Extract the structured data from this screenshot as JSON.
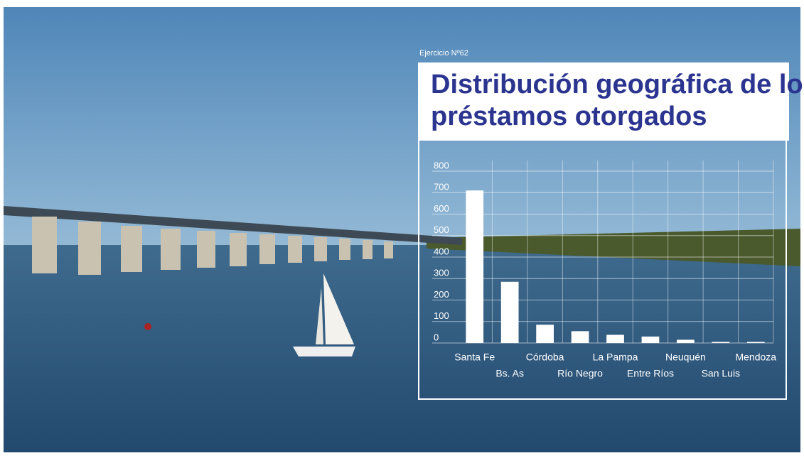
{
  "label": "Ejercicio Nº62",
  "chart_data": {
    "type": "bar",
    "title": "Distribución geográfica de los préstamos otorgados",
    "categories": [
      "Santa Fe",
      "Bs. As",
      "Córdoba",
      "Río Negro",
      "La Pampa",
      "Entre Ríos",
      "Neuquén",
      "San Luis",
      "Mendoza"
    ],
    "values": [
      710,
      285,
      85,
      55,
      38,
      30,
      15,
      5,
      5
    ],
    "color": "#ffffff",
    "ylim": [
      0,
      800
    ],
    "yticks": [
      0,
      100,
      200,
      300,
      400,
      500,
      600,
      700,
      800
    ],
    "grid": true
  }
}
